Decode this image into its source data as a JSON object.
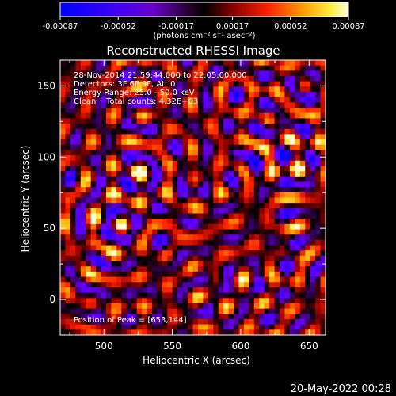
{
  "colorbar": {
    "ticks": [
      "-0.00087",
      "-0.00052",
      "-0.00017",
      "0.00017",
      "0.00052",
      "0.00087"
    ],
    "tick_values": [
      -0.00087,
      -0.00052,
      -0.00017,
      0.00017,
      0.00052,
      0.00087
    ],
    "range": [
      -0.00087,
      0.00087
    ],
    "units": "(photons cm⁻² s⁻¹ asec⁻²)",
    "colors": {
      "negative_low": "#0000ff",
      "negative_high": "#6a00ff",
      "zero": "#000000",
      "low": "#8a0000",
      "mid": "#ff2000",
      "high": "#ff9a00",
      "peak": "#ffffe0"
    }
  },
  "title": "Reconstructed RHESSI Image",
  "annotations": {
    "line1": "28-Nov-2014 21:59:44.000 to 22:05:00.000",
    "line2": "Detectors: 3F 6F 9F, Att 0",
    "line3": "Energy Range: 25.0 - 50.0 keV",
    "line4": "Clean    Total counts: 4.32E+03",
    "peak": "Position of Peak = [653,144]"
  },
  "footer_date": "20-May-2022 00:28",
  "chart_data": {
    "type": "heatmap",
    "title": "Reconstructed RHESSI Image",
    "xlabel": "Heliocentric X (arcsec)",
    "ylabel": "Heliocentric Y (arcsec)",
    "xlim": [
      468,
      662
    ],
    "ylim": [
      -25,
      168
    ],
    "x_ticks": [
      500,
      550,
      600,
      650
    ],
    "y_ticks": [
      0,
      50,
      100,
      150
    ],
    "x_tick_labels": [
      "500",
      "550",
      "600",
      "650"
    ],
    "y_tick_labels": [
      "0",
      "50",
      "100",
      "150"
    ],
    "grid_nx": 52,
    "grid_ny": 52,
    "peak_position": [
      653,
      144
    ],
    "value_range": [
      -0.00087,
      0.00087
    ],
    "colormap": "blue-purple-black-red-orange-yellow-white",
    "grid": false
  }
}
